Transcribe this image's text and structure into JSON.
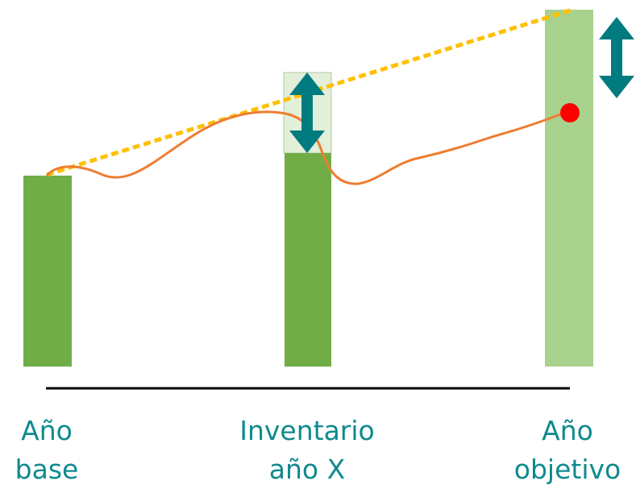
{
  "diagram": {
    "categories": [
      {
        "id": "base",
        "line1": "Año",
        "line2": "base"
      },
      {
        "id": "inventory",
        "line1": "Inventario",
        "line2": "año X"
      },
      {
        "id": "target",
        "line1": "Año",
        "line2": "objetivo"
      }
    ],
    "colors": {
      "bar_green": "#70ad47",
      "bar_light_green": "#a9d18e",
      "bar_pale_green": "#e2efd9",
      "trend_line_orange": "#ed7d31",
      "target_line_yellow": "#ffc000",
      "arrow_teal": "#007b7f",
      "target_point_red": "#ff0000",
      "label_teal": "#0f8a8e",
      "axis_black": "#000000"
    }
  }
}
